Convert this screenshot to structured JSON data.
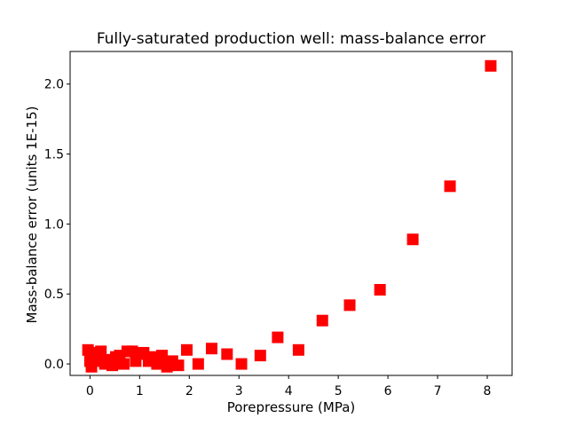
{
  "figure": {
    "background": "#ffffff",
    "frame_color": "#000000",
    "text_color": "#000000"
  },
  "chart_data": {
    "type": "scatter",
    "title": "Fully-saturated production well: mass-balance error",
    "xlabel": "Porepressure (MPa)",
    "ylabel": "Mass-balance error (units 1E-15)",
    "legend": "none",
    "grid": false,
    "marker": "square",
    "marker_color": "#ff0000",
    "marker_size_px": 13,
    "xlim": [
      -0.4,
      8.5
    ],
    "ylim": [
      -0.082,
      2.233
    ],
    "x_ticks": [
      0,
      1,
      2,
      3,
      4,
      5,
      6,
      7,
      8
    ],
    "x_tick_labels": [
      "0",
      "1",
      "2",
      "3",
      "4",
      "5",
      "6",
      "7",
      "8"
    ],
    "y_ticks": [
      0.0,
      0.5,
      1.0,
      1.5,
      2.0
    ],
    "y_tick_labels": [
      "0.0",
      "0.5",
      "1.0",
      "1.5",
      "2.0"
    ],
    "points": [
      [
        -0.04,
        0.1
      ],
      [
        0.0,
        0.02
      ],
      [
        0.03,
        -0.02
      ],
      [
        0.1,
        0.08
      ],
      [
        0.15,
        0.02
      ],
      [
        0.22,
        0.09
      ],
      [
        0.3,
        0.0
      ],
      [
        0.38,
        0.03
      ],
      [
        0.45,
        -0.01
      ],
      [
        0.52,
        0.05
      ],
      [
        0.6,
        0.06
      ],
      [
        0.68,
        0.0
      ],
      [
        0.75,
        0.09
      ],
      [
        0.85,
        0.09
      ],
      [
        0.92,
        0.02
      ],
      [
        1.0,
        0.07
      ],
      [
        1.08,
        0.08
      ],
      [
        1.18,
        0.02
      ],
      [
        1.28,
        0.05
      ],
      [
        1.35,
        0.0
      ],
      [
        1.45,
        0.06
      ],
      [
        1.55,
        -0.02
      ],
      [
        1.66,
        0.02
      ],
      [
        1.78,
        -0.01
      ],
      [
        1.95,
        0.1
      ],
      [
        2.18,
        0.0
      ],
      [
        2.45,
        0.11
      ],
      [
        2.76,
        0.07
      ],
      [
        3.05,
        0.0
      ],
      [
        3.43,
        0.06
      ],
      [
        3.78,
        0.19
      ],
      [
        4.2,
        0.1
      ],
      [
        4.68,
        0.31
      ],
      [
        5.23,
        0.42
      ],
      [
        5.84,
        0.53
      ],
      [
        6.5,
        0.89
      ],
      [
        7.25,
        1.27
      ],
      [
        8.07,
        2.13
      ]
    ]
  }
}
